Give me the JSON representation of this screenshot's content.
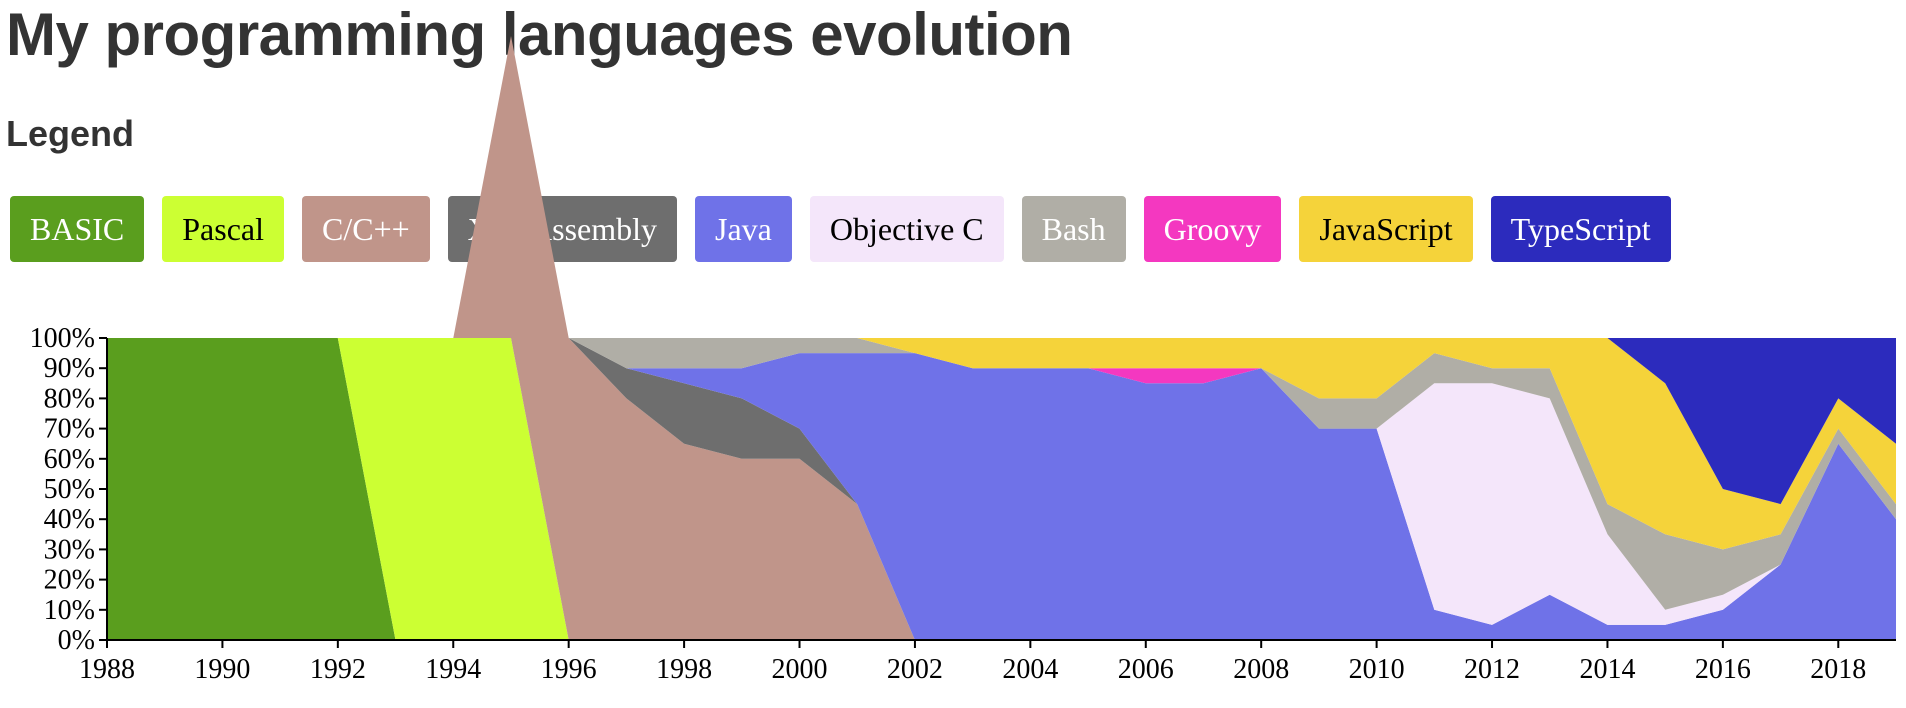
{
  "title": "My programming languages evolution",
  "legend_heading": "Legend",
  "chart_data": {
    "type": "area",
    "stacked": true,
    "normalized": true,
    "x": [
      1988,
      1989,
      1990,
      1991,
      1992,
      1993,
      1994,
      1995,
      1996,
      1997,
      1998,
      1999,
      2000,
      2001,
      2002,
      2003,
      2004,
      2005,
      2006,
      2007,
      2008,
      2009,
      2010,
      2011,
      2012,
      2013,
      2014,
      2015,
      2016,
      2017,
      2018,
      2019
    ],
    "x_ticks": [
      "1988",
      "1990",
      "1992",
      "1994",
      "1996",
      "1998",
      "2000",
      "2002",
      "2004",
      "2006",
      "2008",
      "2010",
      "2012",
      "2014",
      "2016",
      "2018"
    ],
    "y_ticks": [
      "0%",
      "10%",
      "20%",
      "30%",
      "40%",
      "50%",
      "60%",
      "70%",
      "80%",
      "90%",
      "100%"
    ],
    "ylim": [
      0,
      100
    ],
    "series": [
      {
        "name": "BASIC",
        "color": "#5a9e1e",
        "text_color": "#ffffff",
        "values": [
          100,
          100,
          100,
          100,
          100,
          0,
          0,
          0,
          0,
          0,
          0,
          0,
          0,
          0,
          0,
          0,
          0,
          0,
          0,
          0,
          0,
          0,
          0,
          0,
          0,
          0,
          0,
          0,
          0,
          0,
          0,
          0
        ]
      },
      {
        "name": "Pascal",
        "color": "#ccff33",
        "text_color": "#000000",
        "values": [
          0,
          0,
          0,
          0,
          0,
          100,
          100,
          100,
          0,
          0,
          0,
          0,
          0,
          0,
          0,
          0,
          0,
          0,
          0,
          0,
          0,
          0,
          0,
          0,
          0,
          0,
          0,
          0,
          0,
          0,
          0,
          0
        ]
      },
      {
        "name": "C/C++",
        "color": "#c0958a",
        "text_color": "#ffffff",
        "values": [
          0,
          0,
          0,
          0,
          0,
          0,
          0,
          100,
          100,
          80,
          65,
          60,
          60,
          45,
          0,
          0,
          0,
          0,
          0,
          0,
          0,
          0,
          0,
          0,
          0,
          0,
          0,
          0,
          0,
          0,
          0,
          0
        ]
      },
      {
        "name": "X86 Assembly",
        "color": "#6e6e6e",
        "text_color": "#ffffff",
        "values": [
          0,
          0,
          0,
          0,
          0,
          0,
          0,
          0,
          0,
          10,
          20,
          20,
          10,
          0,
          0,
          0,
          0,
          0,
          0,
          0,
          0,
          0,
          0,
          0,
          0,
          0,
          0,
          0,
          0,
          0,
          0,
          0
        ]
      },
      {
        "name": "Java",
        "color": "#6f72e8",
        "text_color": "#ffffff",
        "values": [
          0,
          0,
          0,
          0,
          0,
          0,
          0,
          0,
          0,
          0,
          5,
          10,
          25,
          50,
          95,
          90,
          90,
          90,
          85,
          85,
          90,
          70,
          70,
          10,
          5,
          15,
          5,
          5,
          10,
          25,
          65,
          40
        ]
      },
      {
        "name": "Objective C",
        "color": "#f4e6fa",
        "text_color": "#000000",
        "values": [
          0,
          0,
          0,
          0,
          0,
          0,
          0,
          0,
          0,
          0,
          0,
          0,
          0,
          0,
          0,
          0,
          0,
          0,
          0,
          0,
          0,
          0,
          0,
          75,
          80,
          65,
          30,
          5,
          5,
          0,
          0,
          0
        ]
      },
      {
        "name": "Bash",
        "color": "#b0aea6",
        "text_color": "#ffffff",
        "values": [
          0,
          0,
          0,
          0,
          0,
          0,
          0,
          0,
          0,
          10,
          10,
          10,
          5,
          5,
          0,
          0,
          0,
          0,
          0,
          0,
          0,
          10,
          10,
          10,
          5,
          10,
          10,
          25,
          15,
          10,
          5,
          5
        ]
      },
      {
        "name": "Groovy",
        "color": "#f438c0",
        "text_color": "#ffffff",
        "values": [
          0,
          0,
          0,
          0,
          0,
          0,
          0,
          0,
          0,
          0,
          0,
          0,
          0,
          0,
          0,
          0,
          0,
          0,
          5,
          5,
          0,
          0,
          0,
          0,
          0,
          0,
          0,
          0,
          0,
          0,
          0,
          0
        ]
      },
      {
        "name": "JavaScript",
        "color": "#f5d33a",
        "text_color": "#000000",
        "values": [
          0,
          0,
          0,
          0,
          0,
          0,
          0,
          0,
          0,
          0,
          0,
          0,
          0,
          0,
          5,
          10,
          10,
          10,
          10,
          10,
          10,
          20,
          20,
          5,
          10,
          10,
          55,
          50,
          20,
          10,
          10,
          20
        ]
      },
      {
        "name": "TypeScript",
        "color": "#2c2bbd",
        "text_color": "#ffffff",
        "values": [
          0,
          0,
          0,
          0,
          0,
          0,
          0,
          0,
          0,
          0,
          0,
          0,
          0,
          0,
          0,
          0,
          0,
          0,
          0,
          0,
          0,
          0,
          0,
          0,
          0,
          0,
          0,
          15,
          50,
          55,
          20,
          35
        ]
      }
    ]
  }
}
